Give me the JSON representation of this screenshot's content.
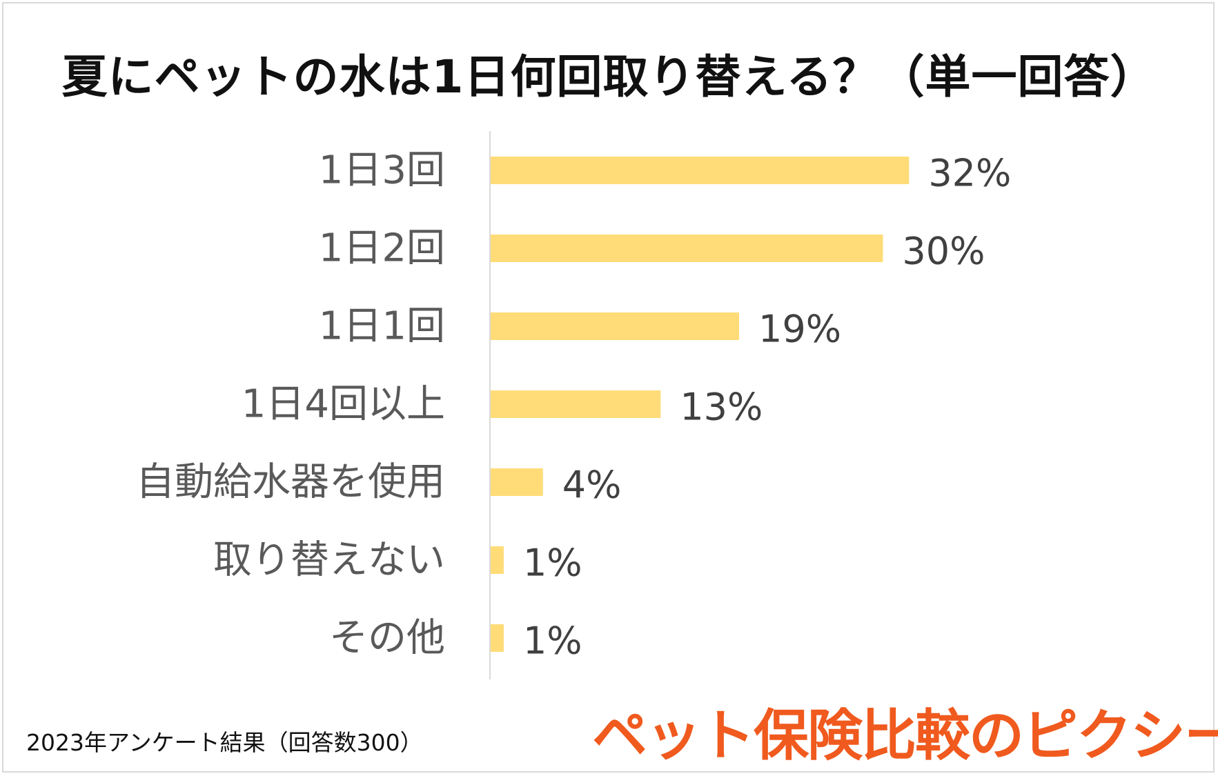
{
  "chart_data": {
    "type": "bar",
    "orientation": "horizontal",
    "title": "夏にペットの水は1日何回取り替える？（単一回答）",
    "categories": [
      "1日3回",
      "1日2回",
      "1日1回",
      "1日4回以上",
      "自動給水器を使用",
      "取り替えない",
      "その他"
    ],
    "values": [
      32,
      30,
      19,
      13,
      4,
      1,
      1
    ],
    "value_labels": [
      "32%",
      "30%",
      "19%",
      "13%",
      "4%",
      "1%",
      "1%"
    ],
    "unit": "%",
    "xlim": [
      0,
      38
    ],
    "bar_color": "#ffdc78",
    "grid": false,
    "legend": "none"
  },
  "footnote": "2023年アンケート結果（回答数300）",
  "logo_text": "ペット保険比較のピクシー",
  "colors": {
    "axis": "#d9d9d9",
    "logo": "#f05a1e"
  }
}
